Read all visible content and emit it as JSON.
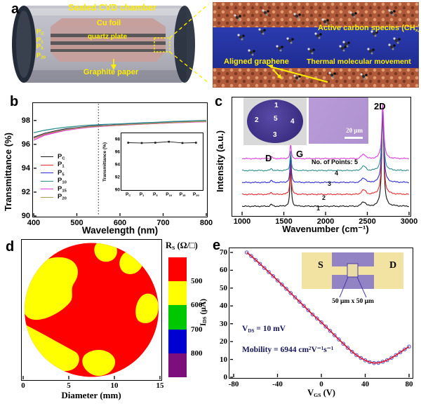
{
  "panels": {
    "a": {
      "letter": "a",
      "chamber": {
        "title": "Sealed CVD chamber",
        "cu_foil": "Cu foil",
        "quartz_plate": "quartz plate",
        "graphite_paper": "Graphite paper",
        "stack_labels": [
          {
            "b": "P",
            "s": "C"
          },
          {
            "b": "P",
            "s": "1"
          },
          {
            "b": "P",
            "s": "5"
          },
          {
            "b": "P",
            "s": "20"
          }
        ]
      },
      "inset": {
        "active_carbon": {
          "pre": "Active carbon species (CH",
          "sub": "x",
          "post": ")"
        },
        "aligned_graphene": "Aligned graphene",
        "thermal": "Thermal molecular movement"
      }
    },
    "b": {
      "letter": "b"
    },
    "c": {
      "letter": "c"
    },
    "d": {
      "letter": "d"
    },
    "e": {
      "letter": "e"
    }
  },
  "chart_data": [
    {
      "id": "b-main",
      "type": "line",
      "xlabel": "Wavelength (nm)",
      "ylabel": "Transmittance (%)",
      "xlim": [
        400,
        800
      ],
      "ylim": [
        90,
        99.4
      ],
      "xticks": [
        400,
        500,
        600,
        700,
        800
      ],
      "yticks": [
        90,
        92,
        94,
        96,
        98
      ],
      "dotted_vline_x": 550,
      "x": [
        400,
        425,
        450,
        475,
        500,
        525,
        550,
        575,
        600,
        625,
        650,
        675,
        700,
        725,
        750,
        775,
        800
      ],
      "series": [
        {
          "nb": "P",
          "ns": "C",
          "color": "#1a1a1a",
          "values": [
            96.6,
            96.92,
            97.12,
            97.3,
            97.4,
            97.5,
            97.56,
            97.6,
            97.66,
            97.7,
            97.75,
            97.79,
            97.82,
            97.86,
            97.9,
            97.93,
            97.95
          ]
        },
        {
          "nb": "P",
          "ns": "1",
          "color": "#e8282c",
          "values": [
            96.5,
            96.84,
            97.04,
            97.22,
            97.34,
            97.44,
            97.5,
            97.56,
            97.6,
            97.66,
            97.7,
            97.74,
            97.78,
            97.82,
            97.85,
            97.88,
            97.9
          ]
        },
        {
          "nb": "P",
          "ns": "5",
          "color": "#2c2cd6",
          "values": [
            96.55,
            96.88,
            97.08,
            97.26,
            97.38,
            97.47,
            97.53,
            97.6,
            97.64,
            97.69,
            97.73,
            97.77,
            97.81,
            97.85,
            97.88,
            97.92,
            97.94
          ]
        },
        {
          "nb": "P",
          "ns": "10",
          "color": "#2f8e8e",
          "values": [
            96.98,
            97.18,
            97.32,
            97.44,
            97.52,
            97.6,
            97.65,
            97.69,
            97.72,
            97.76,
            97.8,
            97.84,
            97.88,
            97.92,
            97.95,
            97.98,
            98.0
          ]
        },
        {
          "nb": "P",
          "ns": "15",
          "color": "#e03ce0",
          "values": [
            96.35,
            96.76,
            96.98,
            97.18,
            97.31,
            97.42,
            97.49,
            97.55,
            97.6,
            97.65,
            97.69,
            97.73,
            97.77,
            97.81,
            97.84,
            97.87,
            97.9
          ]
        },
        {
          "nb": "P",
          "ns": "20",
          "color": "#b29c52",
          "values": [
            96.52,
            96.86,
            97.06,
            97.24,
            97.36,
            97.46,
            97.52,
            97.58,
            97.62,
            97.67,
            97.71,
            97.75,
            97.79,
            97.83,
            97.86,
            97.9,
            97.92
          ]
        }
      ]
    },
    {
      "id": "b-inset",
      "type": "line",
      "ylabel": "Transmittance (%)",
      "categories": [
        {
          "b": "P",
          "s": "C"
        },
        {
          "b": "P",
          "s": "1"
        },
        {
          "b": "P",
          "s": "5"
        },
        {
          "b": "P",
          "s": "10"
        },
        {
          "b": "P",
          "s": "15"
        },
        {
          "b": "P",
          "s": "20"
        }
      ],
      "values": [
        97.5,
        97.45,
        97.5,
        97.65,
        97.45,
        97.5
      ],
      "ylim": [
        90,
        99
      ],
      "yticks": [
        90,
        92,
        94,
        96,
        98
      ],
      "line_color": "#1a1a1a"
    },
    {
      "id": "c-raman",
      "type": "line",
      "xlabel": "Wavenumber (cm⁻¹)",
      "ylabel": "Intensity (a.u.)",
      "xlim": [
        1000,
        3000
      ],
      "xticks": [
        1000,
        1500,
        2000,
        2500,
        3000
      ],
      "band_labels": {
        "d": "D",
        "g": "G",
        "two_d": "2D"
      },
      "points_label": "No. of Points: 5",
      "peak_positions": {
        "d": 1350,
        "g": 1582,
        "minor": 2455,
        "two_d": 2685
      },
      "series": [
        {
          "name": "1",
          "color": "#111111",
          "baseline": 0,
          "g_height": 58,
          "two_d_height": 136,
          "minor_height": 6,
          "d_height": 2.5
        },
        {
          "name": "2",
          "color": "#e8282c",
          "baseline": 17,
          "g_height": 47,
          "two_d_height": 122,
          "minor_height": 6,
          "d_height": 2.5
        },
        {
          "name": "3",
          "color": "#2c2cd6",
          "baseline": 34,
          "g_height": 38,
          "two_d_height": 108,
          "minor_height": 6,
          "d_height": 2.5
        },
        {
          "name": "4",
          "color": "#2f8e8e",
          "baseline": 51,
          "g_height": 28,
          "two_d_height": 93,
          "minor_height": 6,
          "d_height": 2.5
        },
        {
          "name": "5",
          "color": "#e03ce0",
          "baseline": 68,
          "g_height": 20,
          "two_d_height": 79,
          "minor_height": 6,
          "d_height": 2.5
        }
      ],
      "wafer_points": [
        "1",
        "2",
        "3",
        "4",
        "5"
      ],
      "scalebar_label": "20 μm"
    },
    {
      "id": "d-map",
      "type": "heatmap",
      "title": {
        "pre": "R",
        "sub": "S",
        "post": " (Ω/□)"
      },
      "xlabel": "Diameter (mm)",
      "xticks": [
        0,
        5,
        10,
        15
      ],
      "colorbar": {
        "segment_colors": [
          "#fe0000",
          "#ffff00",
          "#00c800",
          "#0000d0",
          "#7d0f7d"
        ],
        "boundary_labels": [
          "500",
          "600",
          "700",
          "800"
        ]
      },
      "base_value_color": "#fe0000",
      "patch_value_color": "#ffff00",
      "patch_paths": [
        "M2,102 C-4,62 16,26 48,24 C76,22 86,42 74,60 C66,72 76,80 66,90 C52,106 12,126 2,102 Z",
        "M106,4 C116,-2 130,0 134,10 C138,22 128,32 116,30 C104,28 98,12 106,4 Z",
        "M148,16 C162,10 174,20 171,34 C168,46 154,52 144,45 C135,38 137,22 148,16 Z",
        "M176,76 C190,74 196,88 193,102 C190,116 176,122 166,115 C157,108 161,80 176,76 Z",
        "M88,164 C100,152 122,154 130,166 C137,177 126,192 110,193 C94,194 79,176 88,164 Z",
        "M4,120 C20,128 52,146 74,158 C86,164 82,184 64,186 C34,188 8,160 4,120 Z"
      ]
    },
    {
      "id": "e-transfer",
      "type": "scatter-line",
      "xlabel": {
        "pre": "V",
        "sub": "GS",
        "post": " (V)"
      },
      "ylabel": {
        "pre": "I",
        "sub": "DS",
        "post": " (μA)"
      },
      "xlim": [
        -80,
        80
      ],
      "ylim": [
        0,
        70
      ],
      "xticks": [
        -80,
        -40,
        0,
        40,
        80
      ],
      "yticks": [
        0,
        10,
        20,
        30,
        40,
        50,
        60,
        70
      ],
      "line_color": "#d81e3c",
      "marker_color": "#5050d0",
      "x": [
        -68,
        -64,
        -60,
        -56,
        -52,
        -48,
        -44,
        -40,
        -36,
        -32,
        -28,
        -24,
        -20,
        -16,
        -12,
        -8,
        -4,
        0,
        4,
        8,
        12,
        16,
        20,
        24,
        28,
        32,
        36,
        40,
        44,
        48,
        52,
        56,
        60,
        64,
        68,
        72,
        76,
        80
      ],
      "y": [
        70,
        68,
        65.8,
        63.6,
        61.3,
        59,
        56.7,
        54.3,
        52,
        49.6,
        47.2,
        44.8,
        42.4,
        40,
        37.6,
        35.2,
        33,
        30.8,
        28.4,
        26,
        23.6,
        21.2,
        18.8,
        16.5,
        14.3,
        12.4,
        10.8,
        9.5,
        8.5,
        8,
        8.1,
        8.7,
        9.6,
        10.9,
        12.4,
        14,
        15.6,
        17.2
      ],
      "annotations": {
        "vds": {
          "pre": "V",
          "sub": "DS",
          "post": " = 10 mV"
        },
        "mobility": "Mobility = 6944 cm²V⁻¹s⁻¹"
      },
      "inset": {
        "source_label": "S",
        "drain_label": "D",
        "channel_label": "50 μm x 50 μm"
      }
    }
  ]
}
